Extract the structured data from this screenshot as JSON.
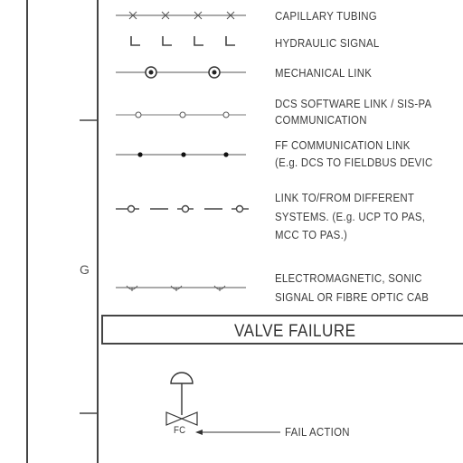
{
  "zone_label": "G",
  "legend": [
    {
      "label": "CAPILLARY TUBING"
    },
    {
      "label": "HYDRAULIC SIGNAL"
    },
    {
      "label": "MECHANICAL LINK"
    },
    {
      "label": "DCS SOFTWARE LINK / SIS-PA",
      "label2": "COMMUNICATION"
    },
    {
      "label": "FF COMMUNICATION LINK",
      "label2": "(E.g. DCS TO FIELDBUS DEVIC"
    },
    {
      "label": "LINK TO/FROM DIFFERENT",
      "label2": "SYSTEMS. (E.g. UCP TO PAS,",
      "label3": "MCC TO PAS.)"
    },
    {
      "label": "ELECTROMAGNETIC, SONIC",
      "label2": "SIGNAL OR FIBRE OPTIC CAB"
    }
  ],
  "section_title": "VALVE FAILURE",
  "valve": {
    "code": "FC",
    "callout": "FAIL ACTION"
  }
}
